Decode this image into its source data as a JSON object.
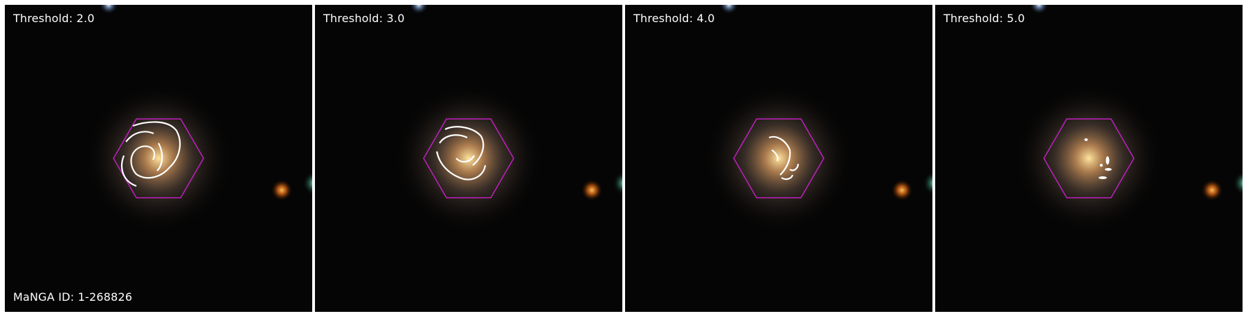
{
  "panels": [
    {
      "threshold_label": "Threshold: 2.0",
      "threshold": 2.0
    },
    {
      "threshold_label": "Threshold: 3.0",
      "threshold": 3.0
    },
    {
      "threshold_label": "Threshold: 4.0",
      "threshold": 4.0
    },
    {
      "threshold_label": "Threshold: 5.0",
      "threshold": 5.0
    }
  ],
  "manga_id_label": "MaNGA ID: 1-268826",
  "colors": {
    "hexagon": "#c020c0",
    "contour": "#ffffff",
    "sky": "#050505",
    "galaxy_core": "#f0c070"
  }
}
